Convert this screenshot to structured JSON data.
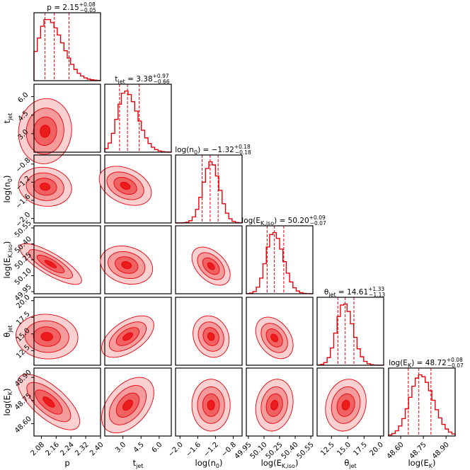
{
  "chart_data": {
    "type": "corner",
    "color": "#e8000b",
    "params": [
      {
        "key": "p",
        "label": "p",
        "title": "p = 2.15",
        "err_plus": "+0.08",
        "err_minus": "−0.05",
        "range": [
          2.04,
          2.4
        ],
        "ticks": [
          "2.08",
          "2.16",
          "2.24",
          "2.32",
          "2.40"
        ],
        "tickvals": [
          2.08,
          2.16,
          2.24,
          2.32,
          2.4
        ],
        "quantiles": [
          2.1,
          2.15,
          2.23
        ],
        "mode": 2.11,
        "skew": 0.06
      },
      {
        "key": "tjet",
        "label": "t_jet",
        "title": "t_jet = 3.38",
        "err_plus": "+0.97",
        "err_minus": "−0.66",
        "range": [
          1.5,
          7.0
        ],
        "ticks": [
          "3.0",
          "4.5",
          "6.0"
        ],
        "tickvals": [
          3.0,
          4.5,
          6.0
        ],
        "quantiles": [
          2.72,
          3.38,
          4.35
        ],
        "mode": 3.2,
        "skew": 1.0
      },
      {
        "key": "logn0",
        "label": "log(n_0)",
        "title": "log(n_0) = −1.32",
        "err_plus": "+0.18",
        "err_minus": "−0.18",
        "range": [
          -2.1,
          -0.6
        ],
        "ticks": [
          "−2.0",
          "−1.6",
          "−1.2",
          "−0.8"
        ],
        "tickvals": [
          -2.0,
          -1.6,
          -1.2,
          -0.8
        ],
        "quantiles": [
          -1.5,
          -1.32,
          -1.14
        ],
        "mode": -1.3,
        "skew": 0.0
      },
      {
        "key": "logEiso",
        "label": "log(E_K,iso)",
        "title": "log(E_K,iso) = 50.20",
        "err_plus": "+0.09",
        "err_minus": "−0.07",
        "range": [
          49.93,
          50.57
        ],
        "ticks": [
          "49.95",
          "50.10",
          "50.25",
          "50.40",
          "50.55"
        ],
        "tickvals": [
          49.95,
          50.1,
          50.25,
          50.4,
          50.55
        ],
        "quantiles": [
          50.13,
          50.2,
          50.29
        ],
        "mode": 50.19,
        "skew": 0.02
      },
      {
        "key": "thetajet",
        "label": "θ_jet",
        "title": "θ_jet = 14.61",
        "err_plus": "+1.33",
        "err_minus": "−1.13",
        "range": [
          10.3,
          20.5
        ],
        "ticks": [
          "12.5",
          "15.0",
          "17.5",
          "20.0"
        ],
        "tickvals": [
          12.5,
          15.0,
          17.5,
          20.0
        ],
        "quantiles": [
          13.48,
          14.61,
          15.94
        ],
        "mode": 14.4,
        "skew": 0.5
      },
      {
        "key": "logEK",
        "label": "log(E_K)",
        "title": "log(E_K) = 48.72",
        "err_plus": "+0.08",
        "err_minus": "−0.07",
        "range": [
          48.52,
          48.96
        ],
        "ticks": [
          "48.60",
          "48.75",
          "48.90"
        ],
        "tickvals": [
          48.6,
          48.75,
          48.9
        ],
        "quantiles": [
          48.65,
          48.72,
          48.8
        ],
        "mode": 48.73,
        "skew": 0.0
      }
    ],
    "pairs": [
      {
        "row": 1,
        "col": 0,
        "center": [
          2.1,
          3.2
        ],
        "spread": [
          0.06,
          1.1
        ],
        "rho": 0.05
      },
      {
        "row": 2,
        "col": 0,
        "center": [
          2.1,
          -1.3
        ],
        "spread": [
          0.06,
          0.18
        ],
        "rho": -0.1
      },
      {
        "row": 2,
        "col": 1,
        "center": [
          3.2,
          -1.28
        ],
        "spread": [
          0.9,
          0.18
        ],
        "rho": -0.35
      },
      {
        "row": 3,
        "col": 0,
        "center": [
          2.13,
          50.21
        ],
        "spread": [
          0.07,
          0.08
        ],
        "rho": -0.8
      },
      {
        "row": 3,
        "col": 1,
        "center": [
          3.3,
          50.2
        ],
        "spread": [
          0.9,
          0.075
        ],
        "rho": -0.2
      },
      {
        "row": 3,
        "col": 2,
        "center": [
          -1.3,
          50.19
        ],
        "spread": [
          0.18,
          0.075
        ],
        "rho": -0.45
      },
      {
        "row": 4,
        "col": 0,
        "center": [
          2.11,
          14.6
        ],
        "spread": [
          0.07,
          1.4
        ],
        "rho": -0.05
      },
      {
        "row": 4,
        "col": 1,
        "center": [
          3.4,
          14.6
        ],
        "spread": [
          0.9,
          1.3
        ],
        "rho": 0.55
      },
      {
        "row": 4,
        "col": 2,
        "center": [
          -1.3,
          14.6
        ],
        "spread": [
          0.17,
          1.3
        ],
        "rho": -0.15
      },
      {
        "row": 4,
        "col": 3,
        "center": [
          50.2,
          14.4
        ],
        "spread": [
          0.075,
          1.3
        ],
        "rho": -0.35
      },
      {
        "row": 5,
        "col": 0,
        "center": [
          2.12,
          48.74
        ],
        "spread": [
          0.07,
          0.075
        ],
        "rho": -0.7
      },
      {
        "row": 5,
        "col": 1,
        "center": [
          3.4,
          48.72
        ],
        "spread": [
          0.9,
          0.075
        ],
        "rho": 0.45
      },
      {
        "row": 5,
        "col": 2,
        "center": [
          -1.3,
          48.72
        ],
        "spread": [
          0.18,
          0.07
        ],
        "rho": 0.0
      },
      {
        "row": 5,
        "col": 3,
        "center": [
          50.2,
          48.72
        ],
        "spread": [
          0.075,
          0.07
        ],
        "rho": 0.15
      },
      {
        "row": 5,
        "col": 4,
        "center": [
          14.7,
          48.72
        ],
        "spread": [
          1.3,
          0.07
        ],
        "rho": 0.15
      }
    ]
  }
}
